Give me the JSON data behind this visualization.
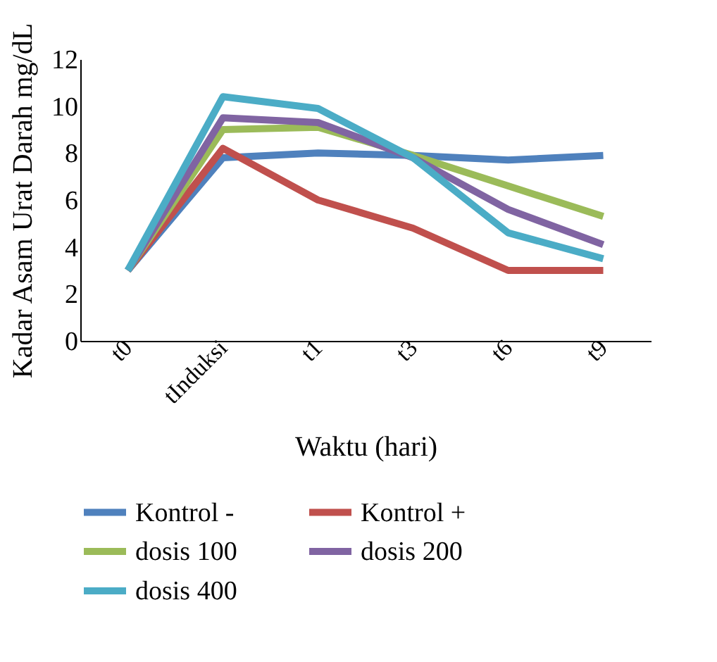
{
  "chart_data": {
    "type": "line",
    "xlabel": "Waktu (hari)",
    "ylabel": "Kadar Asam Urat Darah mg/dL",
    "categories": [
      "t0",
      "tInduksi",
      "t1",
      "t3",
      "t6",
      "t9"
    ],
    "ylim": [
      0,
      12
    ],
    "yticks": [
      0,
      2,
      4,
      6,
      8,
      10,
      12
    ],
    "grid": false,
    "legend": "bottom",
    "marker": "none",
    "line_style": "solid",
    "series": [
      {
        "name": "Kontrol -",
        "color": "#4f81bd",
        "values": [
          3,
          7.8,
          8.0,
          7.9,
          7.7,
          7.9
        ]
      },
      {
        "name": "Kontrol +",
        "color": "#c0504d",
        "values": [
          3,
          8.2,
          6.0,
          4.8,
          3.0,
          3.0
        ]
      },
      {
        "name": "dosis 100",
        "color": "#9bbb59",
        "values": [
          3,
          9.0,
          9.1,
          7.9,
          6.6,
          5.3
        ]
      },
      {
        "name": "dosis 200",
        "color": "#8064a2",
        "values": [
          3,
          9.5,
          9.3,
          7.8,
          5.6,
          4.1
        ]
      },
      {
        "name": "dosis 400",
        "color": "#4bacc6",
        "values": [
          3,
          10.4,
          9.9,
          7.8,
          4.6,
          3.5
        ]
      }
    ]
  }
}
